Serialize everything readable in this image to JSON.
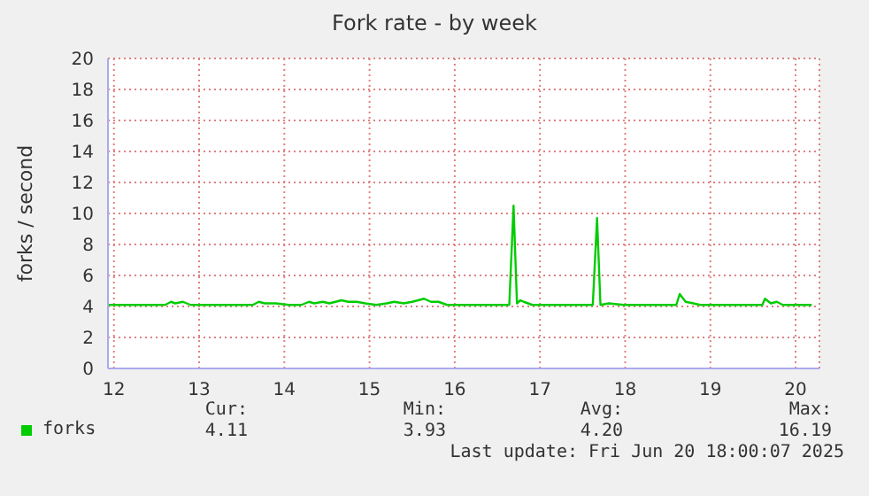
{
  "chart_data": {
    "type": "line",
    "title": "Fork rate - by week",
    "ylabel": "forks / second",
    "x": [
      11.93,
      12.6,
      12.67,
      12.72,
      12.81,
      12.9,
      13.01,
      13.63,
      13.7,
      13.77,
      13.9,
      14.05,
      14.2,
      14.29,
      14.35,
      14.45,
      14.53,
      14.6,
      14.67,
      14.75,
      14.85,
      14.95,
      15.08,
      15.2,
      15.29,
      15.4,
      15.5,
      15.57,
      15.64,
      15.72,
      15.81,
      15.91,
      16.64,
      16.69,
      16.73,
      16.77,
      16.81,
      16.91,
      17.62,
      17.67,
      17.71,
      17.81,
      17.98,
      18.6,
      18.64,
      18.71,
      18.8,
      18.88,
      19.61,
      19.64,
      19.71,
      19.78,
      19.85,
      20.19
    ],
    "series": [
      {
        "name": "forks",
        "color": "#00cc00",
        "values": [
          4.1,
          4.1,
          4.3,
          4.2,
          4.3,
          4.1,
          4.1,
          4.1,
          4.3,
          4.2,
          4.2,
          4.1,
          4.1,
          4.3,
          4.2,
          4.3,
          4.2,
          4.3,
          4.4,
          4.3,
          4.3,
          4.2,
          4.1,
          4.2,
          4.3,
          4.2,
          4.3,
          4.4,
          4.5,
          4.3,
          4.3,
          4.1,
          4.1,
          10.5,
          4.2,
          4.4,
          4.3,
          4.1,
          4.1,
          9.7,
          4.1,
          4.2,
          4.1,
          4.1,
          4.8,
          4.3,
          4.2,
          4.1,
          4.1,
          4.5,
          4.2,
          4.3,
          4.1,
          4.1
        ]
      }
    ],
    "xlim": [
      11.93,
      20.28
    ],
    "xticks": [
      12,
      13,
      14,
      15,
      16,
      17,
      18,
      19,
      20
    ],
    "ylim": [
      0,
      20
    ],
    "yticks": [
      0,
      2,
      4,
      6,
      8,
      10,
      12,
      14,
      16,
      18,
      20
    ],
    "grid": true,
    "legend": "bottom left",
    "annotations": [
      "Cur:",
      "Min:",
      "Avg:",
      "Max:",
      "4.11",
      "3.93",
      "4.20",
      "16.19",
      "Last update: Fri Jun 20 18:00:07 2025"
    ]
  }
}
